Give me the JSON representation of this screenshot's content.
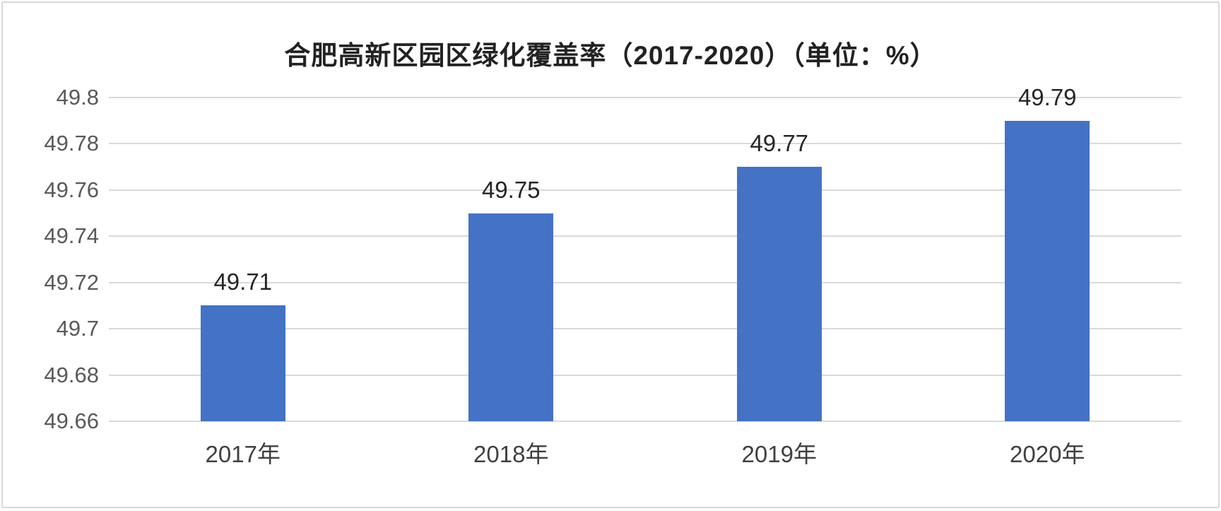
{
  "chart_data": {
    "type": "bar",
    "title": "合肥高新区园区绿化覆盖率（2017-2020）（单位：%）",
    "categories": [
      "2017年",
      "2018年",
      "2019年",
      "2020年"
    ],
    "category_keys": [
      "2017",
      "2018",
      "2019",
      "2020"
    ],
    "values": [
      49.71,
      49.75,
      49.77,
      49.79
    ],
    "value_labels": [
      "49.71",
      "49.75",
      "49.77",
      "49.79"
    ],
    "xlabel": "",
    "ylabel": "",
    "ylim": [
      49.66,
      49.8
    ],
    "yticks": [
      49.8,
      49.78,
      49.76,
      49.74,
      49.72,
      49.7,
      49.68,
      49.66
    ],
    "ytick_labels": [
      "49.8",
      "49.78",
      "49.76",
      "49.74",
      "49.72",
      "49.7",
      "49.68",
      "49.66"
    ],
    "grid": true,
    "legend_position": "none",
    "colors": {
      "bar": "#4472C4",
      "gridline": "#d9d9d9",
      "title_text": "#222222",
      "ytick_text": "#595959",
      "xtick_text": "#404040",
      "value_text": "#262626",
      "border": "#d9d9d9",
      "background": "#ffffff"
    }
  }
}
